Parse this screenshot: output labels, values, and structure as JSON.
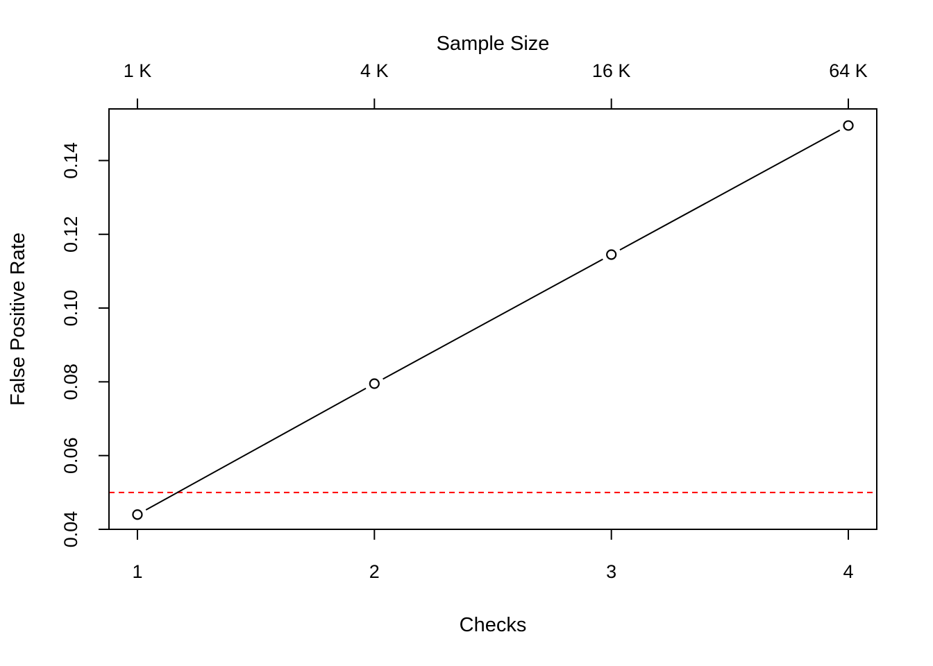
{
  "chart_data": {
    "type": "line",
    "title": "",
    "xlabel": "Checks",
    "ylabel": "False Positive Rate",
    "x2label": "Sample Size",
    "x": [
      1,
      2,
      3,
      4
    ],
    "y": [
      0.044,
      0.0795,
      0.1145,
      0.1495
    ],
    "xlim": [
      0.88,
      4.12
    ],
    "ylim": [
      0.04,
      0.154
    ],
    "x_ticks": [
      1,
      2,
      3,
      4
    ],
    "x_tick_labels": [
      "1",
      "2",
      "3",
      "4"
    ],
    "x2_ticks": [
      1,
      2,
      3,
      4
    ],
    "x2_tick_labels": [
      "1 K",
      "4 K",
      "16 K",
      "64 K"
    ],
    "y_ticks": [
      0.04,
      0.06,
      0.08,
      0.1,
      0.12,
      0.14
    ],
    "y_tick_labels": [
      "0.04",
      "0.06",
      "0.08",
      "0.10",
      "0.12",
      "0.14"
    ],
    "reference_line": {
      "y": 0.05,
      "color": "#ff0000",
      "style": "dashed"
    },
    "line_color": "#000000",
    "marker": "open-circle",
    "grid": false,
    "legend": "none"
  }
}
